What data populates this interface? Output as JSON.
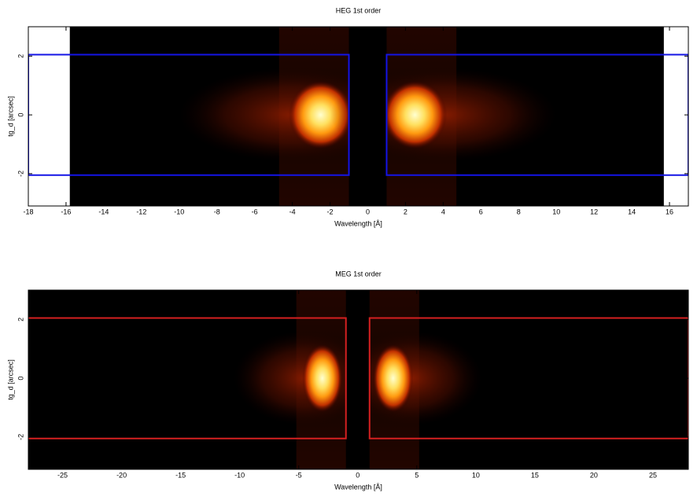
{
  "chart_data": [
    {
      "type": "heatmap",
      "title": "HEG 1st order",
      "xlabel": "Wavelength [Å]",
      "ylabel": "tg_d [arcsec]",
      "xlim": [
        -18,
        17
      ],
      "ylim": [
        -3.1,
        3
      ],
      "xticks": [
        -18,
        -16,
        -14,
        -12,
        -10,
        -8,
        -6,
        -4,
        -2,
        0,
        2,
        4,
        6,
        8,
        10,
        12,
        14,
        16
      ],
      "yticks": [
        -2,
        0,
        2
      ],
      "exposure_xlim": [
        -15.8,
        15.7
      ],
      "peaks": [
        -2.5,
        2.5
      ],
      "region_color": "#1414e6",
      "regions": [
        {
          "x": [
            -18,
            -1
          ],
          "y": [
            -2.05,
            2.05
          ]
        },
        {
          "x": [
            1,
            17
          ],
          "y": [
            -2.05,
            2.05
          ]
        }
      ]
    },
    {
      "type": "heatmap",
      "title": "MEG 1st order",
      "xlabel": "Wavelength [Å]",
      "ylabel": "tg_d [arcsec]",
      "xlim": [
        -27.9,
        28
      ],
      "ylim": [
        -3.1,
        3
      ],
      "xticks": [
        -25,
        -20,
        -15,
        -10,
        -5,
        0,
        5,
        10,
        15,
        20,
        25
      ],
      "yticks": [
        -2,
        0,
        2
      ],
      "exposure_xlim": [
        -27.9,
        28
      ],
      "peaks": [
        -3,
        3
      ],
      "region_color": "#d42020",
      "regions": [
        {
          "x": [
            -28,
            -1
          ],
          "y": [
            -2.05,
            2.05
          ]
        },
        {
          "x": [
            1,
            28
          ],
          "y": [
            -2.05,
            2.05
          ]
        }
      ]
    }
  ]
}
